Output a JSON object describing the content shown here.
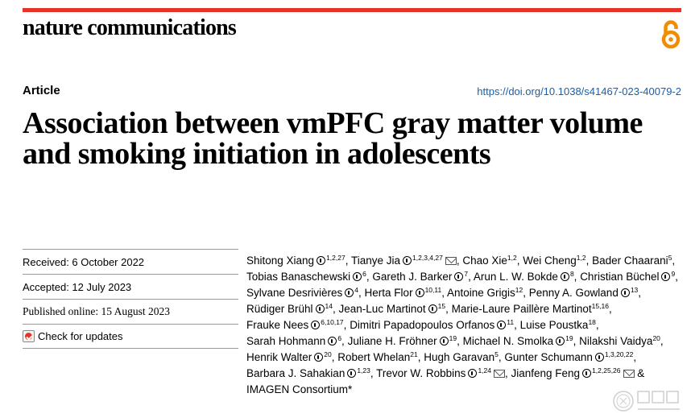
{
  "journal": {
    "name": "nature communications",
    "open_access_icon": "open-access-icon"
  },
  "article": {
    "type": "Article",
    "doi": "https://doi.org/10.1038/s41467-023-40079-2",
    "title": "Association between vmPFC gray matter volume and smoking initiation in adolescents"
  },
  "dates": {
    "received": "Received: 6 October 2022",
    "accepted": "Accepted: 12 July 2023",
    "published": "Published online: 15 August 2023",
    "check_updates": "Check for updates"
  },
  "authors": [
    {
      "name": "Shitong Xiang",
      "orcid": true,
      "sup": "1,2,27"
    },
    {
      "name": "Tianye Jia",
      "orcid": true,
      "sup": "1,2,3,4,27",
      "mail": true
    },
    {
      "name": "Chao Xie",
      "orcid": false,
      "sup": "1,2"
    },
    {
      "name": "Wei Cheng",
      "orcid": false,
      "sup": "1,2"
    },
    {
      "name": "Bader Chaarani",
      "orcid": false,
      "sup": "5"
    },
    {
      "name": "Tobias Banaschewski",
      "orcid": true,
      "sup": "6"
    },
    {
      "name": "Gareth J. Barker",
      "orcid": true,
      "sup": "7"
    },
    {
      "name": "Arun L. W. Bokde",
      "orcid": true,
      "sup": "8"
    },
    {
      "name": "Christian Büchel",
      "orcid": true,
      "sup": "9"
    },
    {
      "name": "Sylvane Desrivières",
      "orcid": true,
      "sup": "4"
    },
    {
      "name": "Herta Flor",
      "orcid": true,
      "sup": "10,11"
    },
    {
      "name": "Antoine Grigis",
      "orcid": false,
      "sup": "12"
    },
    {
      "name": "Penny A. Gowland",
      "orcid": true,
      "sup": "13"
    },
    {
      "name": "Rüdiger Brühl",
      "orcid": true,
      "sup": "14"
    },
    {
      "name": "Jean-Luc Martinot",
      "orcid": true,
      "sup": "15"
    },
    {
      "name": "Marie-Laure Paillère Martinot",
      "orcid": false,
      "sup": "15,16"
    },
    {
      "name": "Frauke Nees",
      "orcid": true,
      "sup": "6,10,17"
    },
    {
      "name": "Dimitri Papadopoulos Orfanos",
      "orcid": true,
      "sup": "11"
    },
    {
      "name": "Luise Poustka",
      "orcid": false,
      "sup": "18"
    },
    {
      "name": "Sarah Hohmann",
      "orcid": true,
      "sup": "6"
    },
    {
      "name": "Juliane H. Fröhner",
      "orcid": true,
      "sup": "19"
    },
    {
      "name": "Michael N. Smolka",
      "orcid": true,
      "sup": "19"
    },
    {
      "name": "Nilakshi Vaidya",
      "orcid": false,
      "sup": "20"
    },
    {
      "name": "Henrik Walter",
      "orcid": true,
      "sup": "20"
    },
    {
      "name": "Robert Whelan",
      "orcid": false,
      "sup": "21"
    },
    {
      "name": "Hugh Garavan",
      "orcid": false,
      "sup": "5"
    },
    {
      "name": "Gunter Schumann",
      "orcid": true,
      "sup": "1,3,20,22"
    },
    {
      "name": "Barbara J. Sahakian",
      "orcid": true,
      "sup": "1,23"
    },
    {
      "name": "Trevor W. Robbins",
      "orcid": true,
      "sup": "1,24",
      "mail": true
    },
    {
      "name": "Jianfeng Feng",
      "orcid": true,
      "sup": "1,2,25,26",
      "mail": true
    },
    {
      "name": "IMAGEN Consortium*",
      "orcid": false,
      "sup": ""
    }
  ],
  "author_conjunction": "&",
  "colors": {
    "accent": "#e5332a",
    "link": "#1a5fa6",
    "oa_orange": "#f28c00"
  }
}
